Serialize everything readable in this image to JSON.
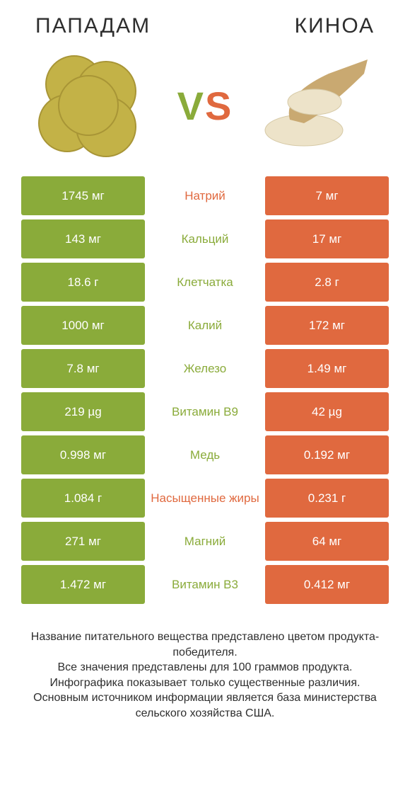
{
  "header": {
    "left_title": "ПАПАДАМ",
    "right_title": "КИНОА",
    "vs_v": "V",
    "vs_s": "S"
  },
  "colors": {
    "green": "#8aab3a",
    "orange": "#e0693f",
    "text": "#2e2e2e",
    "bg": "#ffffff"
  },
  "rows": [
    {
      "left": "1745 мг",
      "label": "Натрий",
      "right": "7 мг",
      "winner": "orange"
    },
    {
      "left": "143 мг",
      "label": "Кальций",
      "right": "17 мг",
      "winner": "green"
    },
    {
      "left": "18.6 г",
      "label": "Клетчатка",
      "right": "2.8 г",
      "winner": "green"
    },
    {
      "left": "1000 мг",
      "label": "Калий",
      "right": "172 мг",
      "winner": "green"
    },
    {
      "left": "7.8 мг",
      "label": "Железо",
      "right": "1.49 мг",
      "winner": "green"
    },
    {
      "left": "219 µg",
      "label": "Витамин B9",
      "right": "42 µg",
      "winner": "green"
    },
    {
      "left": "0.998 мг",
      "label": "Медь",
      "right": "0.192 мг",
      "winner": "green"
    },
    {
      "left": "1.084 г",
      "label": "Насыщенные жиры",
      "right": "0.231 г",
      "winner": "orange"
    },
    {
      "left": "271 мг",
      "label": "Магний",
      "right": "64 мг",
      "winner": "green"
    },
    {
      "left": "1.472 мг",
      "label": "Витамин B3",
      "right": "0.412 мг",
      "winner": "green"
    }
  ],
  "footer": {
    "line1": "Название питательного вещества представлено цветом продукта-победителя.",
    "line2": "Все значения представлены для 100 граммов продукта.",
    "line3": "Инфографика показывает только существенные различия.",
    "line4": "Основным источником информации является база министерства сельского хозяйства США."
  }
}
